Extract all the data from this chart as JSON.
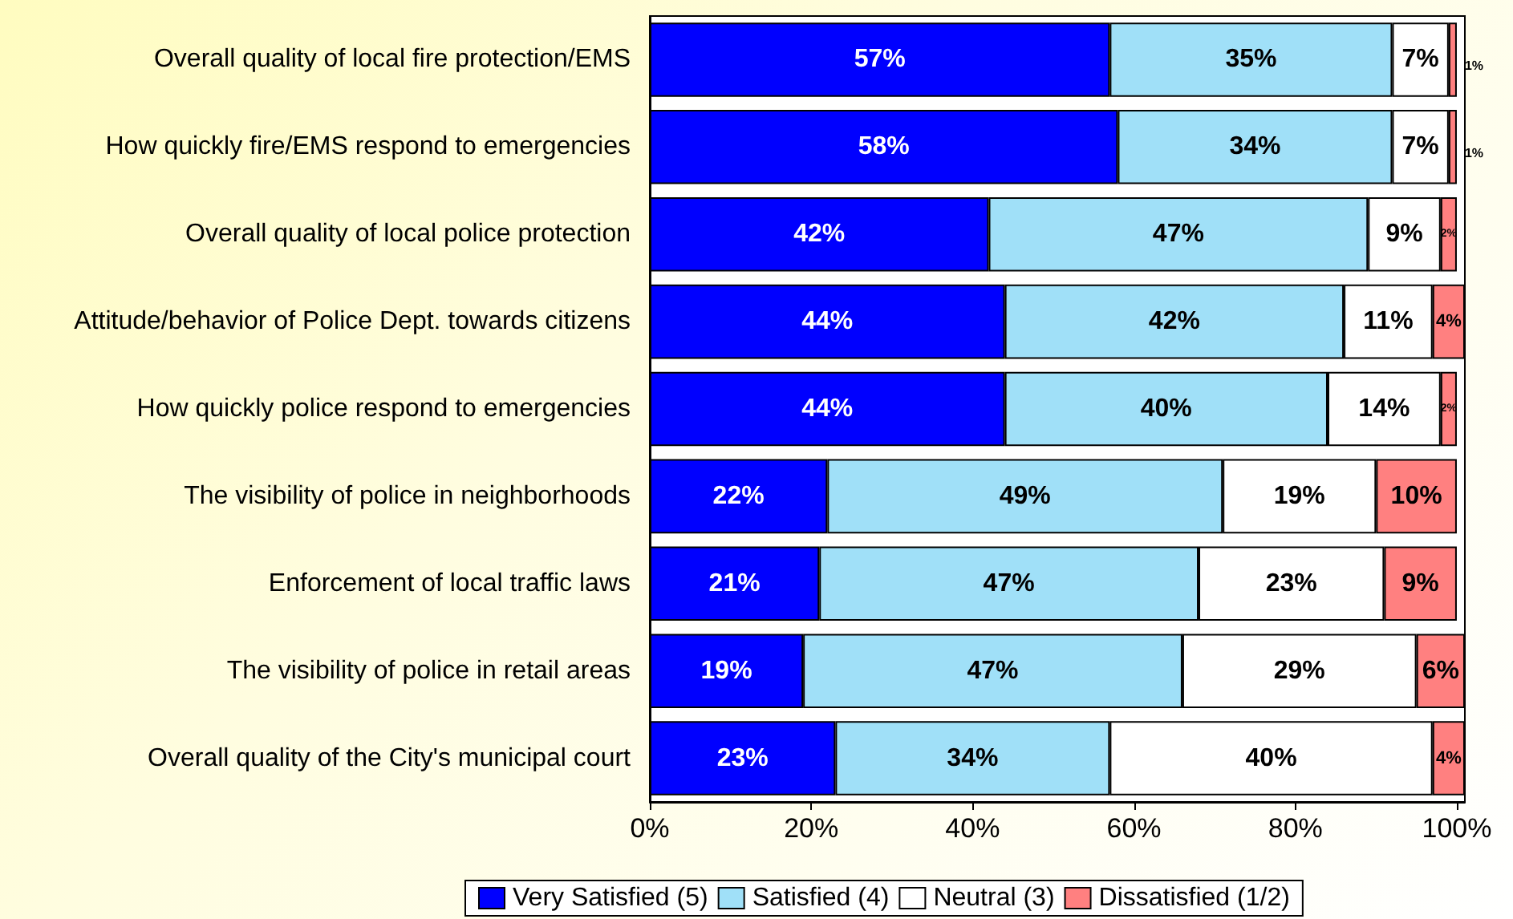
{
  "chart_data": {
    "type": "bar",
    "orientation": "horizontal",
    "stacked": true,
    "categories": [
      "Overall quality of local fire protection/EMS",
      "How quickly fire/EMS respond to emergencies",
      "Overall quality of local police protection",
      "Attitude/behavior of Police Dept. towards citizens",
      "How quickly police respond to emergencies",
      "The visibility of police in neighborhoods",
      "Enforcement of local traffic laws",
      "The visibility of police in retail areas",
      "Overall quality of the City's municipal court"
    ],
    "series": [
      {
        "name": "Very Satisfied (5)",
        "color": "#0000ff",
        "values": [
          57,
          58,
          42,
          44,
          44,
          22,
          21,
          19,
          23
        ],
        "value_labels": [
          "57%",
          "58%",
          "42%",
          "44%",
          "44%",
          "22%",
          "21%",
          "19%",
          "23%"
        ]
      },
      {
        "name": "Satisfied (4)",
        "color": "#a0e0f8",
        "values": [
          35,
          34,
          47,
          42,
          40,
          49,
          47,
          47,
          34
        ],
        "value_labels": [
          "35%",
          "34%",
          "47%",
          "42%",
          "40%",
          "49%",
          "47%",
          "47%",
          "34%"
        ]
      },
      {
        "name": "Neutral (3)",
        "color": "#ffffff",
        "values": [
          7,
          7,
          9,
          11,
          14,
          19,
          23,
          29,
          40
        ],
        "value_labels": [
          "7%",
          "7%",
          "9%",
          "11%",
          "14%",
          "19%",
          "23%",
          "29%",
          "40%"
        ]
      },
      {
        "name": "Dissatisfied (1/2)",
        "color": "#ff8080",
        "values": [
          1,
          1,
          2,
          4,
          2,
          10,
          9,
          6,
          4
        ],
        "value_labels": [
          "1%",
          "1%",
          "2%",
          "4%",
          "2%",
          "10%",
          "9%",
          "6%",
          "4%"
        ]
      }
    ],
    "xlim": [
      0,
      101
    ],
    "xticks": [
      {
        "value": 0,
        "label": "0%"
      },
      {
        "value": 20,
        "label": "20%"
      },
      {
        "value": 40,
        "label": "40%"
      },
      {
        "value": 60,
        "label": "60%"
      },
      {
        "value": 80,
        "label": "80%"
      },
      {
        "value": 100,
        "label": "100%"
      }
    ],
    "grid": false,
    "legend": "bottom"
  }
}
